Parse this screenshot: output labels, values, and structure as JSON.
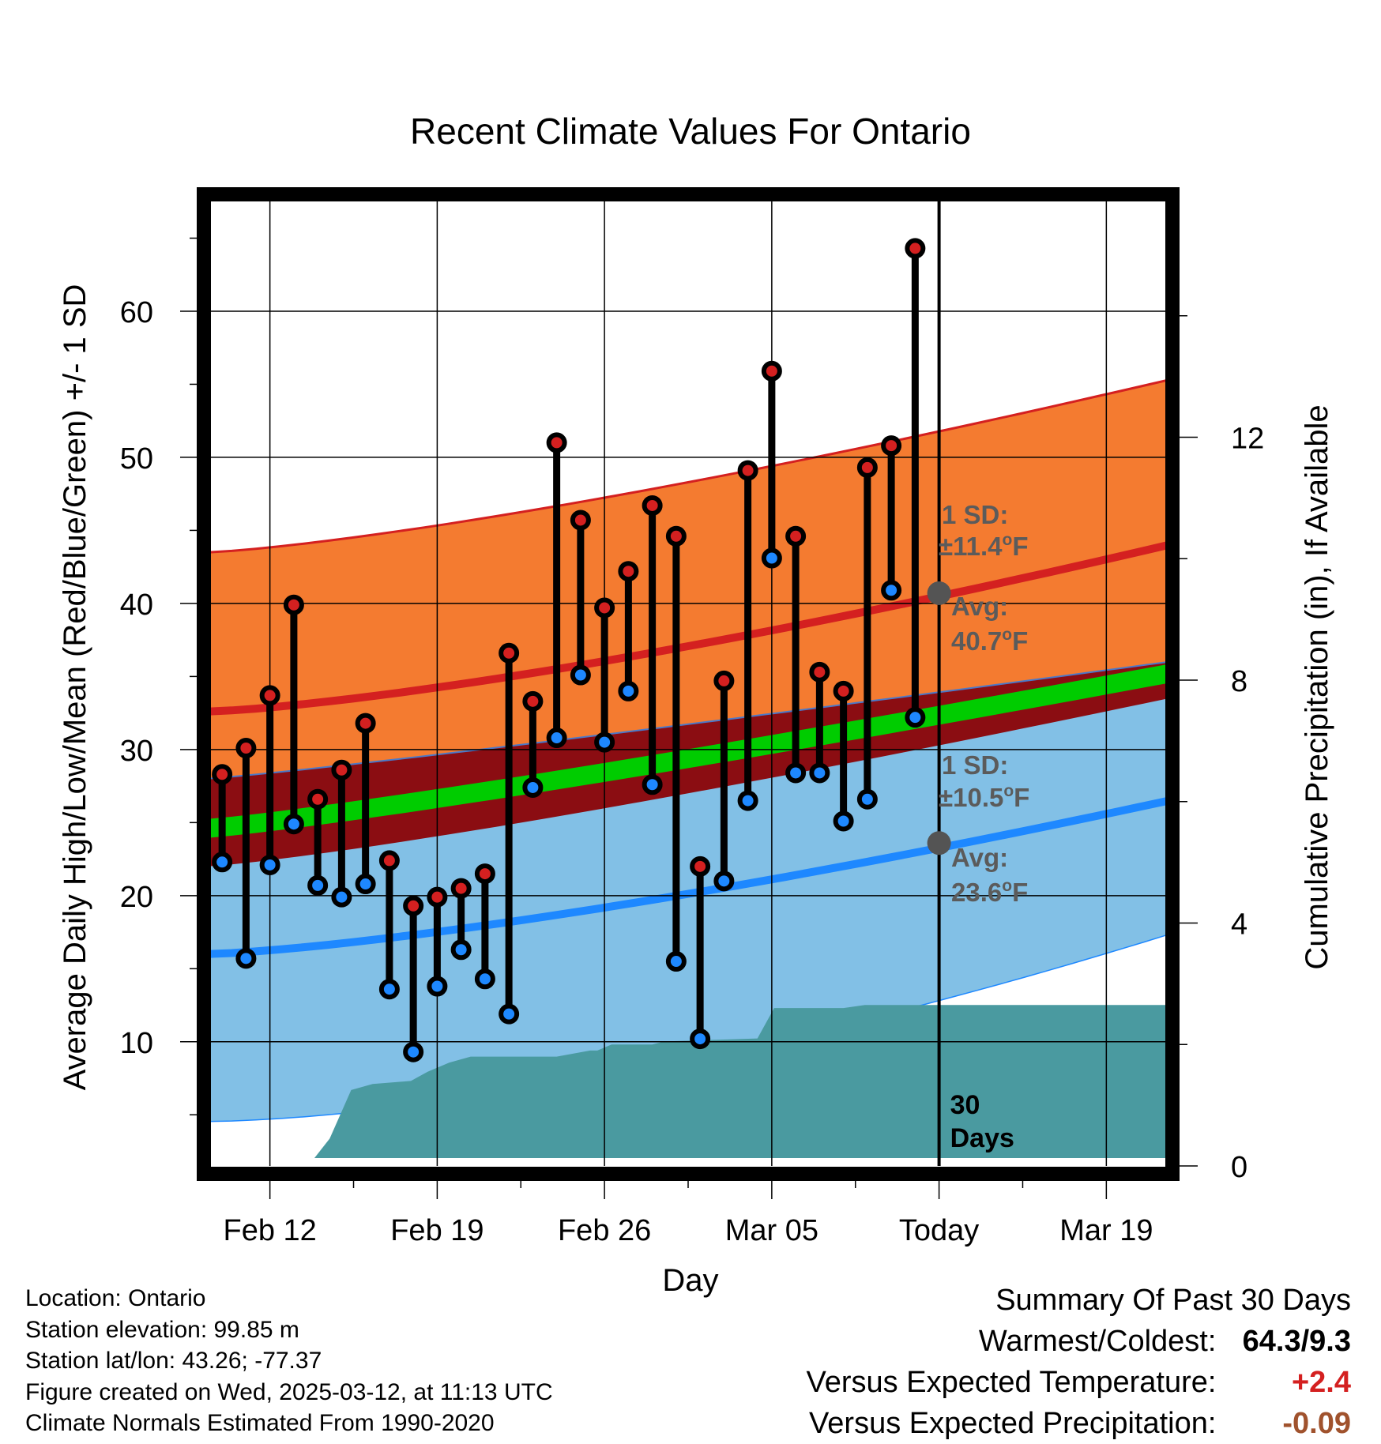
{
  "chart_data": {
    "type": "line",
    "title": "Recent Climate Values For Ontario",
    "xlabel": "Day",
    "ylabel": "Average Daily High/Low/Mean (Red/Blue/Green) +/- 1 SD",
    "y2label": "Cumulative Precipitation (in), If Available",
    "ylim": [
      1.5,
      68
    ],
    "y2lim": [
      0,
      16
    ],
    "yticks": [
      "10",
      "20",
      "30",
      "40",
      "50",
      "60"
    ],
    "y2ticks": [
      "0",
      "4",
      "8",
      "12"
    ],
    "xticks": [
      {
        "day": 0,
        "label": "Feb 12"
      },
      {
        "day": 7,
        "label": "Feb 19"
      },
      {
        "day": 14,
        "label": "Feb 26"
      },
      {
        "day": 21,
        "label": "Mar 05"
      },
      {
        "day": 28,
        "label": "Today"
      },
      {
        "day": 35,
        "label": "Mar 19"
      }
    ],
    "xlim": [
      -2.6,
      37.6
    ],
    "grid": true,
    "today_day": 28,
    "days_label_number": "30",
    "days_label_text": "Days",
    "days": [
      -2,
      -1,
      0,
      1,
      2,
      3,
      4,
      5,
      6,
      7,
      8,
      9,
      10,
      11,
      12,
      13,
      14,
      15,
      16,
      17,
      18,
      19,
      20,
      21,
      22,
      23,
      24,
      25,
      26,
      27
    ],
    "highs": [
      28.3,
      30.1,
      33.7,
      39.9,
      26.6,
      28.6,
      31.8,
      22.4,
      19.3,
      19.9,
      20.5,
      21.5,
      36.6,
      33.3,
      51.0,
      45.7,
      39.7,
      42.2,
      46.7,
      44.6,
      22.0,
      34.7,
      49.1,
      55.9,
      44.6,
      35.3,
      34.0,
      49.3,
      50.8,
      64.3
    ],
    "lows": [
      22.3,
      15.7,
      22.1,
      24.9,
      20.7,
      19.9,
      20.8,
      13.6,
      9.3,
      13.8,
      16.3,
      14.3,
      11.9,
      27.4,
      30.8,
      35.1,
      30.5,
      34.0,
      27.6,
      15.5,
      10.2,
      21.0,
      26.5,
      43.1,
      28.4,
      28.4,
      25.1,
      26.6,
      40.9,
      32.2
    ],
    "normals_x": [
      -2.6,
      37.6
    ],
    "normal_high_start": 32.6,
    "normal_high_end": 44.0,
    "normal_high_sd_upper_start": 43.5,
    "normal_high_sd_upper_end": 55.3,
    "normal_mean_start": 24.6,
    "normal_mean_end": 35.2,
    "normal_mean_band_upper_start": 28.0,
    "normal_mean_band_upper_end": 36.0,
    "normal_mean_band_lower_start": 22.0,
    "normal_mean_band_lower_end": 33.5,
    "normal_low_start": 16.0,
    "normal_low_end": 26.5,
    "normal_low_sd_lower_start": 4.5,
    "normal_low_sd_lower_end": 17.3,
    "precip_cumulative": [
      {
        "day": -2.6,
        "value": 0
      },
      {
        "day": 0.7,
        "value": 0
      },
      {
        "day": 1.7,
        "value": 0.05
      },
      {
        "day": 2.5,
        "value": 0.45
      },
      {
        "day": 3.4,
        "value": 1.25
      },
      {
        "day": 4.3,
        "value": 1.35
      },
      {
        "day": 5.9,
        "value": 1.4
      },
      {
        "day": 6.6,
        "value": 1.55
      },
      {
        "day": 7.5,
        "value": 1.7
      },
      {
        "day": 8.4,
        "value": 1.8
      },
      {
        "day": 12.0,
        "value": 1.8
      },
      {
        "day": 13.4,
        "value": 1.9
      },
      {
        "day": 13.7,
        "value": 1.9
      },
      {
        "day": 14.3,
        "value": 2.0
      },
      {
        "day": 16.0,
        "value": 2.0
      },
      {
        "day": 16.5,
        "value": 2.05
      },
      {
        "day": 20.4,
        "value": 2.1
      },
      {
        "day": 21.1,
        "value": 2.6
      },
      {
        "day": 24.0,
        "value": 2.6
      },
      {
        "day": 24.9,
        "value": 2.65
      },
      {
        "day": 37.6,
        "value": 2.65
      }
    ],
    "annotations": {
      "high_sd_label": "1 SD:",
      "high_sd_value": "±11.4",
      "high_avg_label": "Avg:",
      "high_avg_value": "40.7",
      "high_avg_y": 40.7,
      "low_sd_label": "1 SD:",
      "low_sd_value": "±10.5",
      "low_avg_label": "Avg:",
      "low_avg_value": "23.6",
      "low_avg_y": 23.6,
      "unit_degree": "o",
      "unit_letter": "F"
    },
    "colors": {
      "high_sd_band": "#f47b30",
      "high_sd_edge": "#d42020",
      "normal_high_line": "#d42020",
      "mean_band": "#8b0d12",
      "mean_line": "#00cc00",
      "low_sd_band": "#82c0e6",
      "normal_low_line": "#1e88ff",
      "precip_fill": "#4a9aa0",
      "high_marker": "#d42020",
      "low_marker": "#1e88ff",
      "avg_marker": "#545454"
    }
  },
  "info": {
    "location": "Location: Ontario",
    "elevation": "Station elevation: 99.85 m",
    "latlon": "Station lat/lon: 43.26; -77.37",
    "created": "Figure created on Wed, 2025-03-12, at 11:13 UTC",
    "normals": "Climate Normals Estimated From 1990-2020"
  },
  "summary": {
    "title": "Summary Of Past 30 Days",
    "warmest_label": "Warmest/Coldest:",
    "warmest_value": "64.3/9.3",
    "temp_label": "Versus Expected Temperature:",
    "temp_value": "+2.4",
    "temp_color": "#d42020",
    "precip_label": "Versus Expected Precipitation:",
    "precip_value": "-0.09",
    "precip_color": "#a0522d"
  }
}
